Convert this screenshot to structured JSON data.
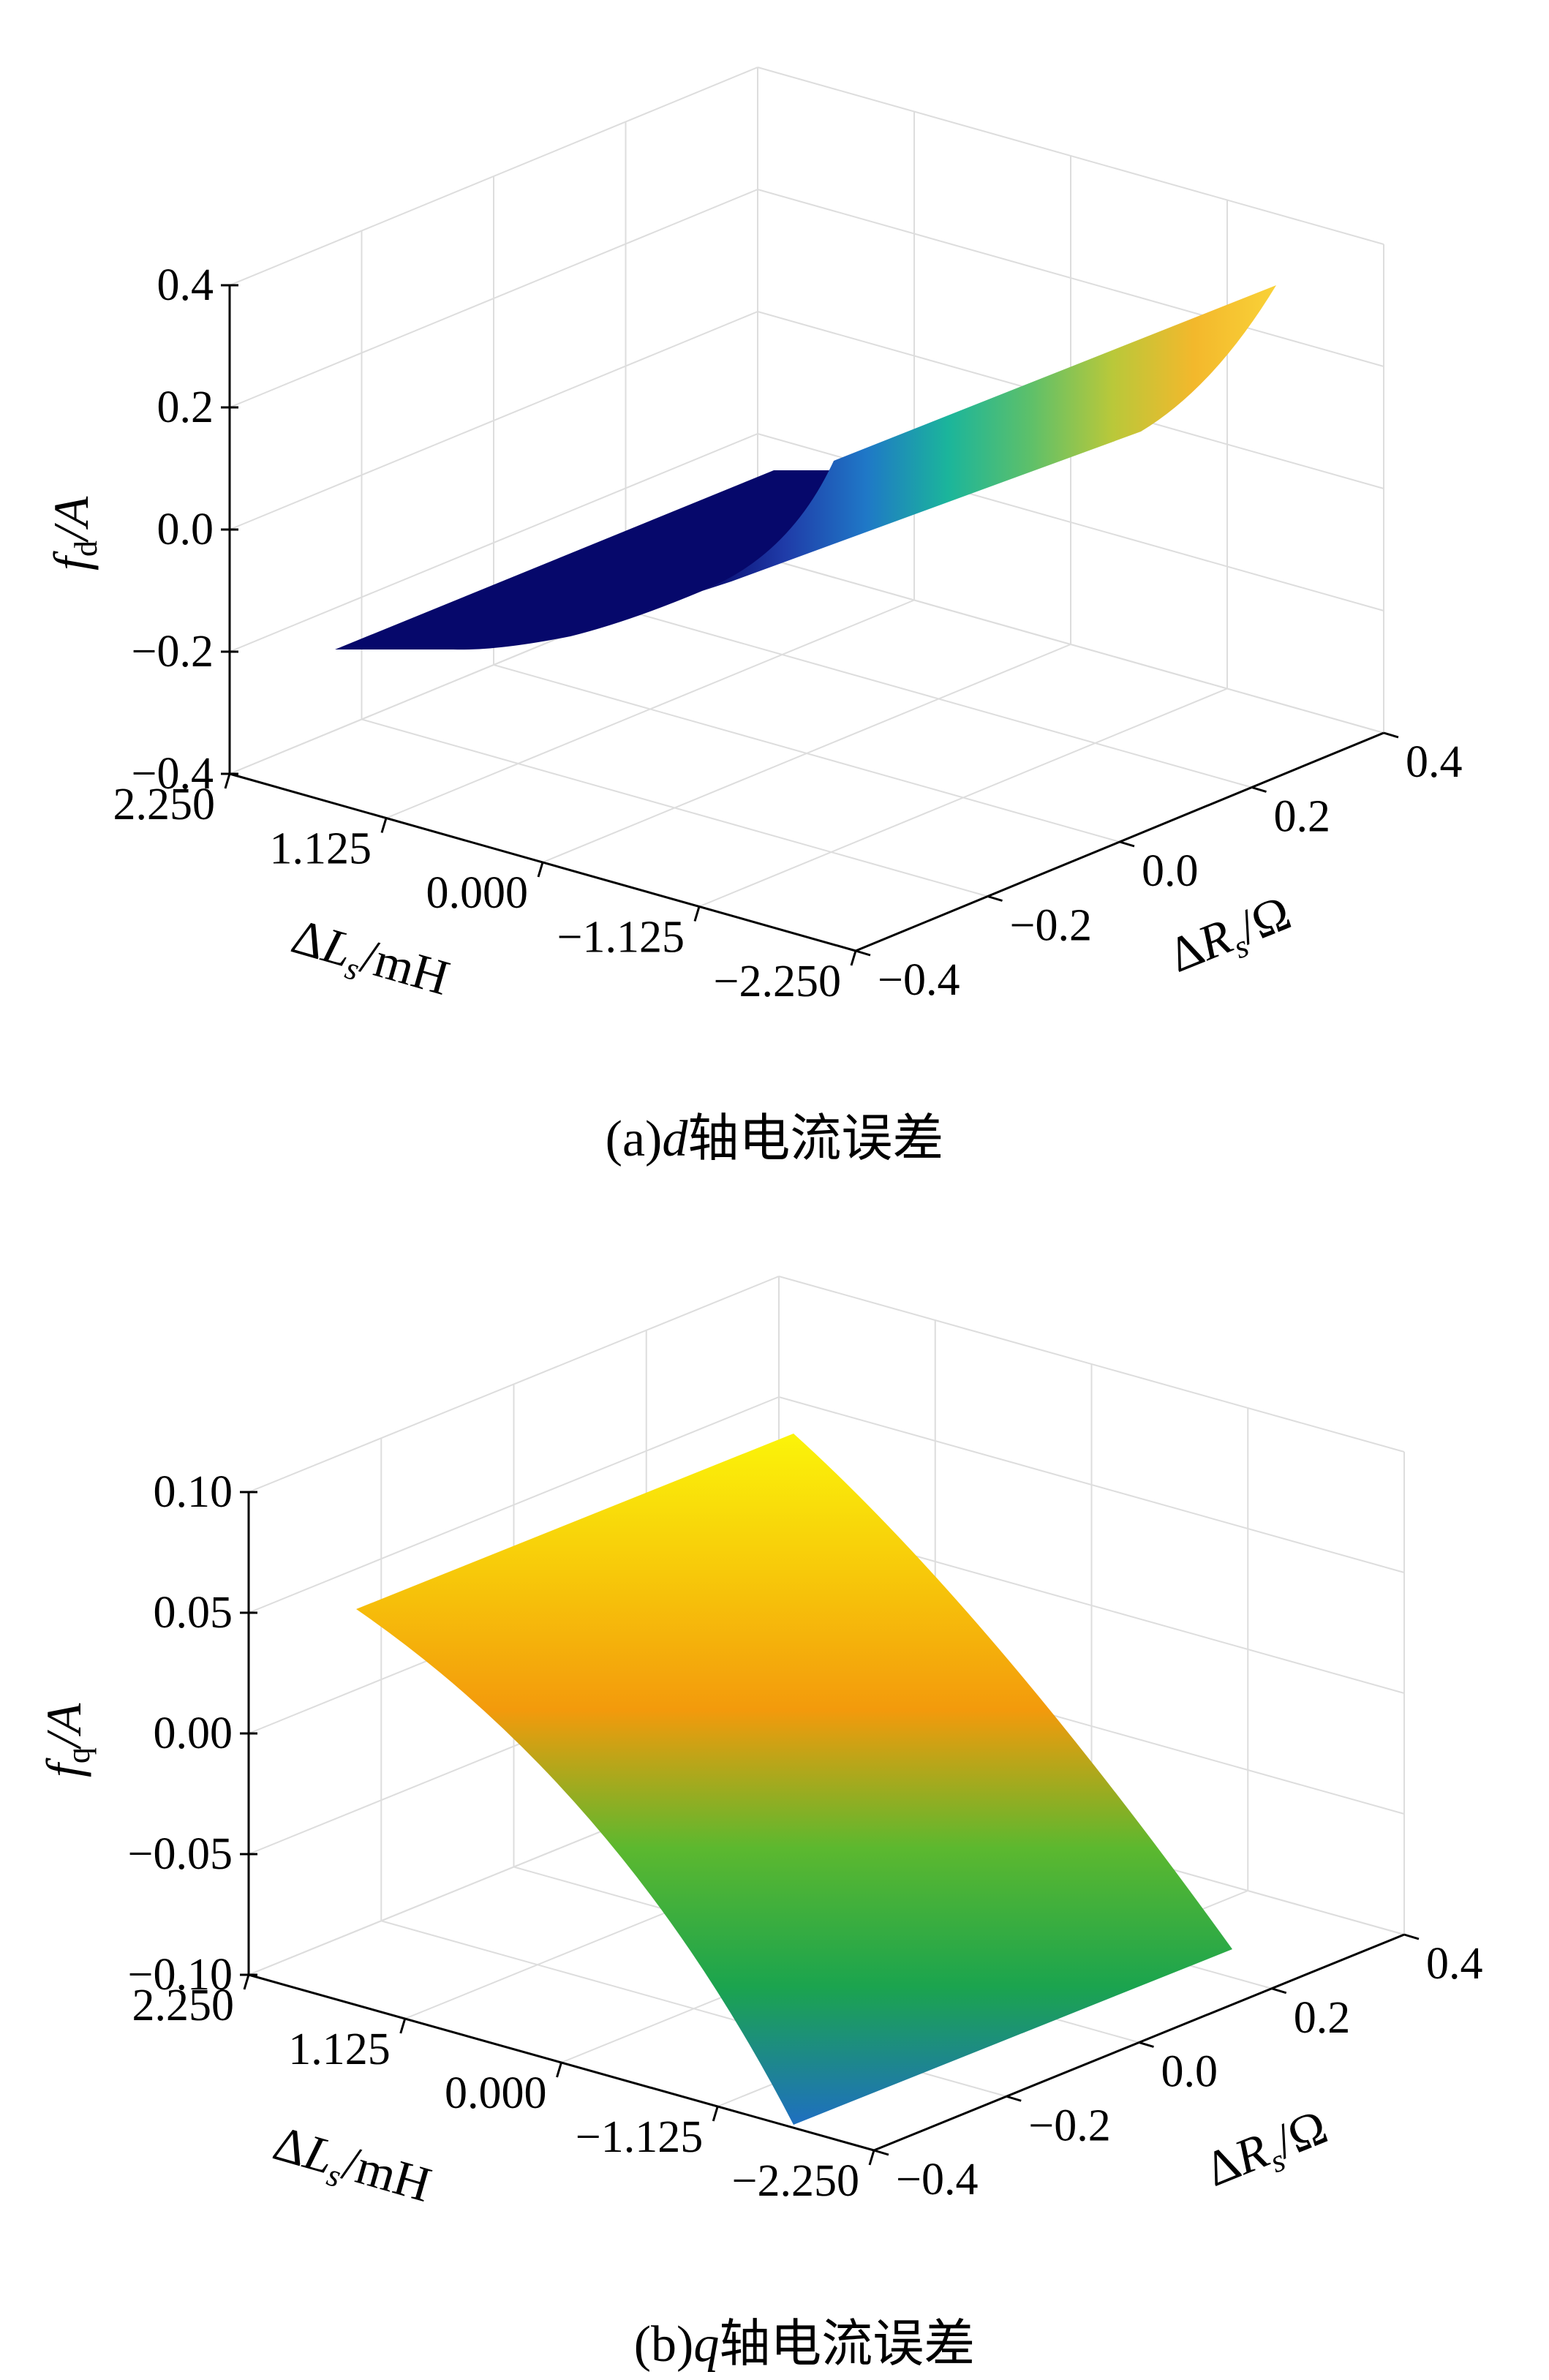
{
  "chart_data": [
    {
      "type": "surface",
      "panel": "a",
      "title": "",
      "caption": "(a)d轴电流误差",
      "caption_parts": {
        "prefix": "(a)",
        "var": "d",
        "suffix": "轴电流误差"
      },
      "zlabel": {
        "base": "f",
        "sub": "d",
        "rest": "/A"
      },
      "xlabel": {
        "delta": "Δ",
        "base": "L",
        "sub": "s",
        "rest": "/mH"
      },
      "ylabel": {
        "delta": "Δ",
        "base": "R",
        "sub": "s",
        "rest": "/Ω"
      },
      "x_ticks": [
        "2.250",
        "1.125",
        "0.000",
        "−1.125",
        "−2.250"
      ],
      "x_values": [
        2.25,
        1.125,
        0.0,
        -1.125,
        -2.25
      ],
      "y_ticks": [
        "−0.4",
        "−0.2",
        "0.0",
        "0.2",
        "0.4"
      ],
      "y_values": [
        -0.4,
        -0.2,
        0.0,
        0.2,
        0.4
      ],
      "z_ticks": [
        "0.4",
        "0.2",
        "0.0",
        "−0.2",
        "−0.4"
      ],
      "z_values": [
        0.4,
        0.2,
        0.0,
        -0.2,
        -0.4
      ],
      "zlim": [
        -0.4,
        0.4
      ],
      "surface": {
        "x": [
          2.25,
          1.125,
          0.0,
          -1.125,
          -2.25
        ],
        "y": [
          -0.4,
          -0.2,
          0.0,
          0.2,
          0.4
        ],
        "z": [
          [
            -0.2,
            -0.2,
            -0.2,
            -0.2,
            -0.2
          ],
          [
            -0.19,
            -0.17,
            -0.14,
            -0.09,
            -0.03
          ],
          [
            -0.14,
            -0.08,
            0.0,
            0.06,
            0.09
          ],
          [
            -0.07,
            0.0,
            0.07,
            0.11,
            0.13
          ],
          [
            -0.03,
            0.04,
            0.1,
            0.14,
            0.16
          ]
        ]
      },
      "colormap": [
        "#06086b",
        "#1f3ba8",
        "#1f78c7",
        "#1bb59b",
        "#5dc06a",
        "#b9c83a",
        "#f3b82c",
        "#f9d238"
      ],
      "grid": true
    },
    {
      "type": "surface",
      "panel": "b",
      "title": "",
      "caption": "(b)q轴电流误差",
      "caption_parts": {
        "prefix": "(b)",
        "var": "q",
        "suffix": "轴电流误差"
      },
      "zlabel": {
        "base": "f",
        "sub": "q",
        "rest": "/A"
      },
      "xlabel": {
        "delta": "Δ",
        "base": "L",
        "sub": "s",
        "rest": "/mH"
      },
      "ylabel": {
        "delta": "Δ",
        "base": "R",
        "sub": "s",
        "rest": "/Ω"
      },
      "x_ticks": [
        "2.250",
        "1.125",
        "0.000",
        "−1.125",
        "−2.250"
      ],
      "x_values": [
        2.25,
        1.125,
        0.0,
        -1.125,
        -2.25
      ],
      "y_ticks": [
        "−0.4",
        "−0.2",
        "0.0",
        "0.2",
        "0.4"
      ],
      "y_values": [
        -0.4,
        -0.2,
        0.0,
        0.2,
        0.4
      ],
      "z_ticks": [
        "0.10",
        "0.05",
        "0.00",
        "−0.05",
        "−0.10"
      ],
      "z_values": [
        0.1,
        0.05,
        0.0,
        -0.05,
        -0.1
      ],
      "zlim": [
        -0.1,
        0.1
      ],
      "surface": {
        "x": [
          2.25,
          1.125,
          0.0,
          -1.125,
          -2.25
        ],
        "y": [
          -0.4,
          -0.2,
          0.0,
          0.2,
          0.4
        ],
        "z": [
          [
            0.06,
            0.048,
            0.02,
            -0.02,
            -0.085
          ],
          [
            0.06,
            0.048,
            0.02,
            -0.02,
            -0.085
          ],
          [
            0.06,
            0.048,
            0.02,
            -0.02,
            -0.085
          ],
          [
            0.06,
            0.048,
            0.02,
            -0.02,
            -0.085
          ],
          [
            0.06,
            0.048,
            0.02,
            -0.02,
            -0.085
          ]
        ]
      },
      "colormap": [
        "#1f6fc0",
        "#1ba44e",
        "#5cb82f",
        "#f39a0c",
        "#f7c90a",
        "#fbf409"
      ],
      "grid": true
    }
  ]
}
